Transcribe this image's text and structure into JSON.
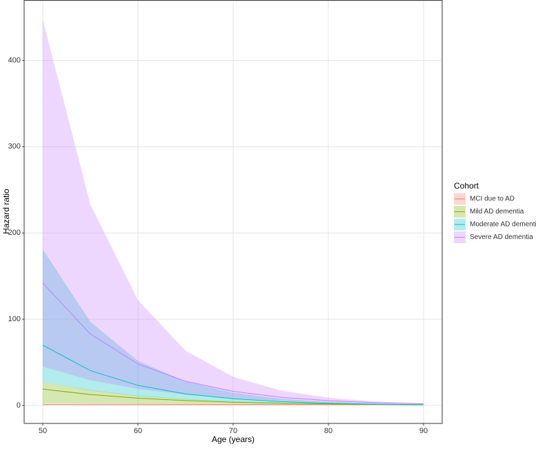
{
  "chart_data": {
    "type": "ribbon-line",
    "x_label": "Age (years)",
    "y_label": "Hazard ratio",
    "legend_title": "Cohort",
    "x": [
      50,
      55,
      60,
      65,
      70,
      75,
      80,
      85,
      90
    ],
    "xlim": [
      48.04,
      91.96
    ],
    "ylim": [
      -20.8,
      469.6
    ],
    "xticks": [
      50,
      60,
      70,
      80,
      90
    ],
    "yticks": [
      0,
      100,
      200,
      300,
      400
    ],
    "grid": true,
    "legend": "right",
    "series": [
      {
        "name": "MCI due to AD",
        "color": "#F8766D",
        "values": [
          1,
          1,
          1,
          1,
          1,
          1,
          1,
          1,
          1
        ],
        "lower": [
          0.8,
          0.8,
          0.8,
          0.8,
          0.8,
          0.8,
          0.8,
          0.8,
          0.8
        ],
        "upper": [
          1.2,
          1.2,
          1.2,
          1.2,
          1.2,
          1.2,
          1.2,
          1.2,
          1.2
        ]
      },
      {
        "name": "Mild AD dementia",
        "color": "#7CAE00",
        "values": [
          19,
          12.7,
          8.5,
          5.7,
          3.8,
          2.6,
          1.7,
          1.2,
          0.8
        ],
        "lower": [
          2,
          1.8,
          1.6,
          1.4,
          1.2,
          1.0,
          0.9,
          0.8,
          0.7
        ],
        "upper": [
          27,
          17.7,
          11.5,
          7.5,
          4.9,
          3.2,
          2.1,
          1.4,
          0.9
        ]
      },
      {
        "name": "Moderate AD dementia",
        "color": "#00BFC4",
        "values": [
          70,
          40.4,
          23.3,
          13.4,
          7.8,
          4.5,
          2.6,
          1.5,
          0.9
        ],
        "lower": [
          27,
          17.2,
          11.0,
          7.0,
          4.5,
          2.9,
          1.8,
          1.2,
          0.7
        ],
        "upper": [
          181,
          96.9,
          51.8,
          27.7,
          14.8,
          7.9,
          4.2,
          2.3,
          1.2
        ]
      },
      {
        "name": "Severe AD dementia",
        "color": "#C77CFF",
        "values": [
          142,
          82.8,
          48.2,
          28.1,
          16.4,
          9.5,
          5.6,
          3.2,
          1.9
        ],
        "lower": [
          45,
          29.4,
          19.2,
          12.6,
          8.2,
          5.4,
          3.5,
          2.3,
          1.5
        ],
        "upper": [
          447,
          233,
          122,
          63.5,
          33.2,
          17.3,
          9.0,
          4.7,
          2.5
        ]
      }
    ]
  }
}
